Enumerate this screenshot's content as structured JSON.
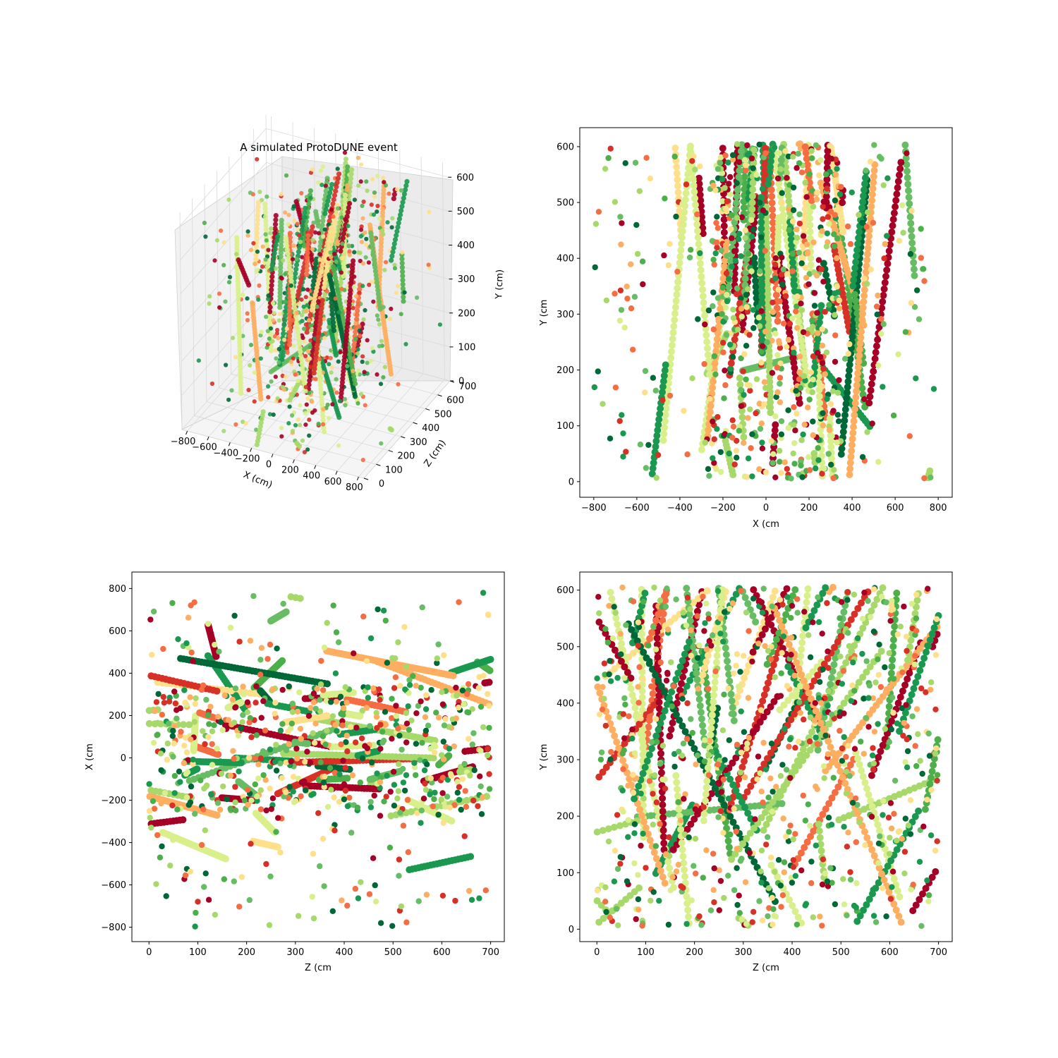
{
  "palette": [
    "#006837",
    "#1a9850",
    "#4daf4a",
    "#66bd63",
    "#a6d96a",
    "#d9ef8b",
    "#fee08b",
    "#fdae61",
    "#f46d43",
    "#d73027",
    "#a50026"
  ],
  "chart_data": [
    {
      "id": "panel-3d",
      "type": "scatter",
      "title": "A simulated ProtoDUNE event",
      "xlabel": "X (cm)",
      "ylabel": "Z (cm)",
      "zlabel": "Y (cm)",
      "x_ticks": [
        "−800",
        "−600",
        "−400",
        "−200",
        "0",
        "200",
        "400",
        "600",
        "800"
      ],
      "y_ticks": [
        "0",
        "100",
        "200",
        "300",
        "400",
        "500",
        "600",
        "700"
      ],
      "z_ticks": [
        "0",
        "100",
        "200",
        "300",
        "400",
        "500",
        "600"
      ],
      "xlim": [
        -850,
        850
      ],
      "ylim": [
        0,
        700
      ],
      "zlim": [
        0,
        640
      ],
      "grid": true
    },
    {
      "id": "panel-xy",
      "type": "scatter",
      "title": "",
      "xlabel": "X (cm",
      "ylabel": "Y (cm",
      "x_ticks": [
        "−800",
        "−600",
        "−400",
        "−200",
        "0",
        "200",
        "400",
        "600",
        "800"
      ],
      "y_ticks": [
        "0",
        "100",
        "200",
        "300",
        "400",
        "500",
        "600"
      ],
      "xlim": [
        -865,
        865
      ],
      "ylim": [
        -28,
        634
      ],
      "grid": false
    },
    {
      "id": "panel-zx",
      "type": "scatter",
      "title": "",
      "xlabel": "Z (cm",
      "ylabel": "X (cm",
      "x_ticks": [
        "0",
        "100",
        "200",
        "300",
        "400",
        "500",
        "600",
        "700"
      ],
      "y_ticks": [
        "−800",
        "−600",
        "−400",
        "−200",
        "0",
        "200",
        "400",
        "600",
        "800"
      ],
      "xlim": [
        -35,
        728
      ],
      "ylim": [
        -868,
        878
      ],
      "grid": false
    },
    {
      "id": "panel-zy",
      "type": "scatter",
      "title": "",
      "xlabel": "Z (cm",
      "ylabel": "Y (cm",
      "x_ticks": [
        "0",
        "100",
        "200",
        "300",
        "400",
        "500",
        "600",
        "700"
      ],
      "y_ticks": [
        "0",
        "100",
        "200",
        "300",
        "400",
        "500",
        "600"
      ],
      "xlim": [
        -35,
        728
      ],
      "ylim": [
        -22,
        632
      ],
      "grid": false
    }
  ]
}
